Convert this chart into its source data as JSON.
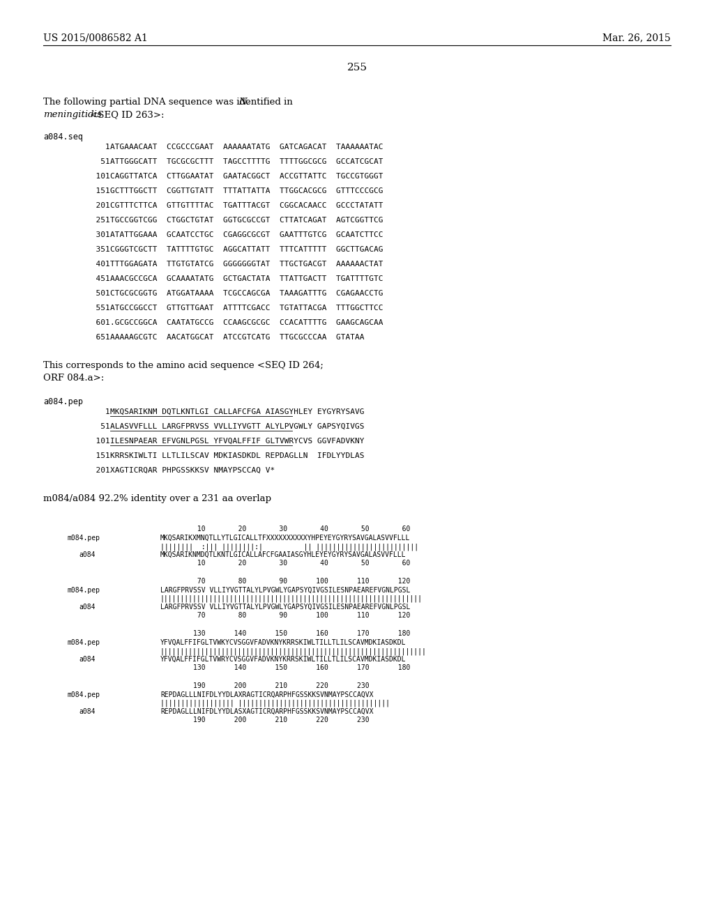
{
  "background_color": "#ffffff",
  "header_left": "US 2015/0086582 A1",
  "header_right": "Mar. 26, 2015",
  "page_number": "255",
  "intro_line1_normal": "The following partial DNA sequence was identified in ",
  "intro_line1_italic": "N.",
  "intro_line2_italic": "meningitidis",
  "intro_line2_normal": " <SEQ ID 263>:",
  "seq_label": "a084.seq",
  "dna_sequences": [
    {
      "num": "1",
      "seq": "ATGAAACAAT  CCGCCCGAAT  AAAAAATATG  GATCAGACAT  TAAAAAATAC"
    },
    {
      "num": "51",
      "seq": "ATTGGGCATT  TGCGCGCTTT  TAGCCTTTTG  TTTTGGCGCG  GCCATCGCAT"
    },
    {
      "num": "101",
      "seq": "CAGGTTATCA  CTTGGAATAT  GAATACGGCT  ACCGTTATTC  TGCCGTGGGT"
    },
    {
      "num": "151",
      "seq": "GCTTTGGCTT  CGGTTGTATT  TTTATTATTA  TTGGCACGCG  GTTTCCCGCG"
    },
    {
      "num": "201",
      "seq": "CGTTTCTTCA  GTTGTTTTAC  TGATTTACGT  CGGCACAACC  GCCCTATATT"
    },
    {
      "num": "251",
      "seq": "TGCCGGTCGG  CTGGCTGTAT  GGTGCGCCGT  CTTATCAGAT  AGTCGGTTCG"
    },
    {
      "num": "301",
      "seq": "ATATTGGAAA  GCAATCCTGC  CGAGGCGCGT  GAATTTGTCG  GCAATCTTCC"
    },
    {
      "num": "351",
      "seq": "CGGGTCGCTT  TATTTTGTGC  AGGCATTATT  TTTCATTTTT  GGCTTGACAG"
    },
    {
      "num": "401",
      "seq": "TTTGGAGATA  TTGTGTATCG  GGGGGGGTAT  TTGCTGACGT  AAAAAACTAT"
    },
    {
      "num": "451",
      "seq": "AAACGCCGCA  GCAAAATATG  GCTGACTATA  TTATTGACTT  TGATTTTGTC"
    },
    {
      "num": "501",
      "seq": "CTGCGCGGTG  ATGGATAAAA  TCGCCAGCGA  TAAAGATTTG  CGAGAACCTG"
    },
    {
      "num": "551",
      "seq": "ATGCCGGCCT  GTTGTTGAAT  ATTTTCGACC  TGTATTACGA  TTTGGCTTCC"
    },
    {
      "num": "601",
      "seq": ".GCGCCGGCA  CAATATGCCG  CCAAGCGCGC  CCACATTTTG  GAAGCAGCAA"
    },
    {
      "num": "651",
      "seq": "AAAAAGCGTC  AACATGGCAT  ATCCGTCATG  TTGCGCCCAA  GTATAA"
    }
  ],
  "aa_intro_line1": "This corresponds to the amino acid sequence <SEQ ID 264;",
  "aa_intro_line2": "ORF 084.a>:",
  "pep_label": "a084.pep",
  "pep_sequences": [
    {
      "num": "1",
      "seq": "MKQSARIKNM DQTLKNTLGI CALLAFCFGA AIASGYHLEY EYGYRYSAVG",
      "underline": true
    },
    {
      "num": "51",
      "seq": "ALASVVFLLL LARGFPRVSS VVLLIYVGTT ALYLPVGWLY GAPSYQIVGS",
      "underline": true
    },
    {
      "num": "101",
      "seq": "ILESNPAEAR EFVGNLPGSL YFVQALFFIF GLTVWRYCVS GGVFADVKNY",
      "underline": true
    },
    {
      "num": "151",
      "seq": "KRRSKIWLTI LLTLILSCAV MDKIASDKDL REPDAGLLN  IFDLYYDLAS",
      "underline": false
    },
    {
      "num": "201",
      "seq": "XAGTICRQAR PHPGSSKKSV NMAYPSCCAQ V*",
      "underline": false
    }
  ],
  "identity_text": "m084/a084 92.2% identity over a 231 aa overlap",
  "align_blocks": [
    {
      "top_nums": "         10        20        30        40        50        60",
      "m_label": "m084.pep",
      "m_seq": "MKQSARIKXMNQTLLYTLGICALLTFXXXXXXXXXXYHPEYEYGYRYSAVGALASVVFLLL",
      "match_line": "||||||||  :||| ||||||||:|          || |||||||||||||||||||||||||",
      "a_label": "a084",
      "a_seq": "MKQSARIKNMDQTLKNTLGICALLAFCFGAAIASGYHLEYEYGYRYSAVGALASVVFLLL",
      "bot_nums": "         10        20        30        40        50        60"
    },
    {
      "top_nums": "         70        80        90       100       110       120",
      "m_label": "m084.pep",
      "m_seq": "LARGFPRVSSV VLLIYVGTTALYLPVGWLYGAPSYQIVGSILESNPAEAREFVGNLPGSL",
      "match_line": "||||||||||||||||||||||||||||||||||||||||||||||||||||||||||||||||",
      "a_label": "a084",
      "a_seq": "LARGFPRVSSV VLLIYVGTTALYLPVGWLYGAPSYQIVGSILESNPAEAREFVGNLPGSL",
      "bot_nums": "         70        80        90       100       110       120"
    },
    {
      "top_nums": "        130       140       150       160       170       180",
      "m_label": "m084.pep",
      "m_seq": "YFVQALFFIFGLTVWKYCVSGGVFADVKNYKRRSKIWLTILLTLILSCAVMDKIASDKDL",
      "match_line": "|||||||||||||||||||||||||||||||||||||||||||||||||||||||||||||||||",
      "a_label": "a084",
      "a_seq": "YFVQALFFIFGLTVWRYCVSGGVFADVKNYKRRSKIWLTILLTLILSCAVMDKIASDKDL",
      "bot_nums": "        130       140       150       160       170       180"
    },
    {
      "top_nums": "        190       200       210       220       230",
      "m_label": "m084.pep",
      "m_seq": "REPDAGLLLNIFDLYYDLAXRAGTICRQARPHFGSSKKSVNMAYPSCCAQVX",
      "match_line": "|||||||||||||||||| |||||||||||||||||||||||||||||||||||||",
      "a_label": "a084",
      "a_seq": "REPDAGLLLNIFDLYYDLASXAGTICRQARPHFGSSKKSVNMAYPSCCAQVX",
      "bot_nums": "        190       200       210       220       230"
    }
  ]
}
